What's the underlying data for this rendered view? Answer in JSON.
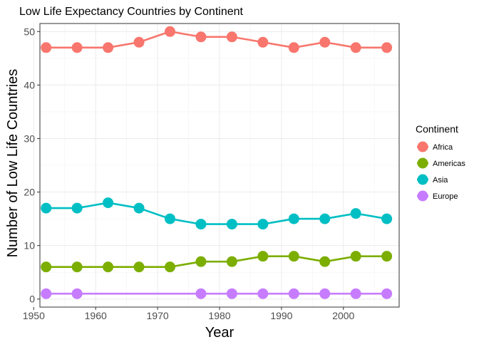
{
  "chart_data": {
    "type": "line",
    "title": "Low Life Expectancy Countries by Continent",
    "xlabel": "Year",
    "ylabel": "Number of Low Life Countries",
    "xlim": [
      1951,
      2009
    ],
    "ylim": [
      -1.5,
      51.5
    ],
    "x_ticks": [
      1950,
      1960,
      1970,
      1980,
      1990,
      2000
    ],
    "y_ticks": [
      0,
      10,
      20,
      30,
      40,
      50
    ],
    "grid": true,
    "legend": {
      "title": "Continent",
      "placement": "right"
    },
    "series": [
      {
        "name": "Africa",
        "color": "#F8766D",
        "points": [
          [
            1952,
            47
          ],
          [
            1957,
            47
          ],
          [
            1962,
            47
          ],
          [
            1967,
            48
          ],
          [
            1972,
            50
          ],
          [
            1977,
            49
          ],
          [
            1982,
            49
          ],
          [
            1987,
            48
          ],
          [
            1992,
            47
          ],
          [
            1997,
            48
          ],
          [
            2002,
            47
          ],
          [
            2007,
            47
          ]
        ]
      },
      {
        "name": "Americas",
        "color": "#7CAE00",
        "points": [
          [
            1952,
            6
          ],
          [
            1957,
            6
          ],
          [
            1962,
            6
          ],
          [
            1967,
            6
          ],
          [
            1972,
            6
          ],
          [
            1977,
            7
          ],
          [
            1982,
            7
          ],
          [
            1987,
            8
          ],
          [
            1992,
            8
          ],
          [
            1997,
            7
          ],
          [
            2002,
            8
          ],
          [
            2007,
            8
          ]
        ]
      },
      {
        "name": "Asia",
        "color": "#00BFC4",
        "points": [
          [
            1952,
            17
          ],
          [
            1957,
            17
          ],
          [
            1962,
            18
          ],
          [
            1967,
            17
          ],
          [
            1972,
            15
          ],
          [
            1977,
            14
          ],
          [
            1982,
            14
          ],
          [
            1987,
            14
          ],
          [
            1992,
            15
          ],
          [
            1997,
            15
          ],
          [
            2002,
            16
          ],
          [
            2007,
            15
          ]
        ]
      },
      {
        "name": "Europe",
        "color": "#C77CFF",
        "points": [
          [
            1952,
            1
          ],
          [
            1957,
            1
          ],
          [
            1977,
            1
          ],
          [
            1982,
            1
          ],
          [
            1987,
            1
          ],
          [
            1992,
            1
          ],
          [
            1997,
            1
          ],
          [
            2002,
            1
          ],
          [
            2007,
            1
          ]
        ]
      }
    ]
  }
}
